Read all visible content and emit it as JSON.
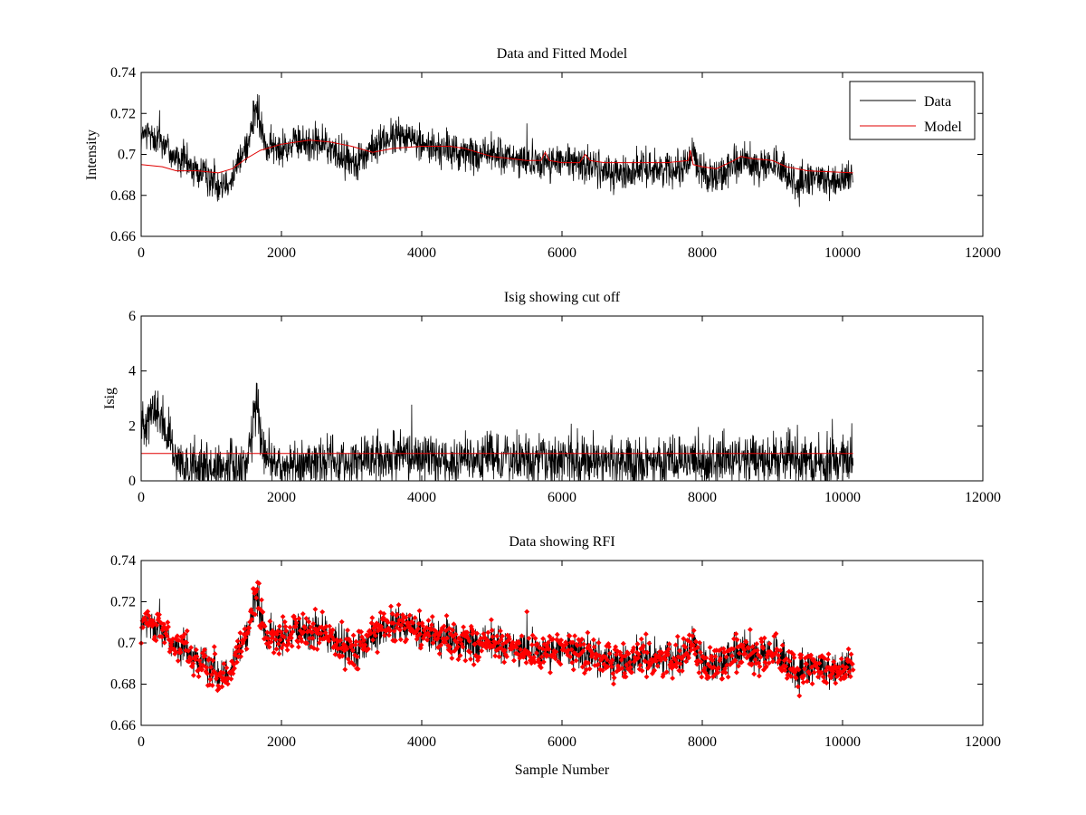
{
  "figure": {
    "background": "#ffffff"
  },
  "chart_data": [
    {
      "type": "line",
      "title": "Data and Fitted Model",
      "xlabel": "",
      "ylabel": "Intensity",
      "xlim": [
        0,
        12000
      ],
      "ylim": [
        0.66,
        0.74
      ],
      "xticks": [
        0,
        2000,
        4000,
        6000,
        8000,
        10000,
        12000
      ],
      "xtick_labels": [
        "0",
        "2000",
        "4000",
        "6000",
        "8000",
        "10000",
        "12000"
      ],
      "yticks": [
        0.66,
        0.68,
        0.7,
        0.72,
        0.74
      ],
      "ytick_labels": [
        "0.66",
        "0.68",
        "0.7",
        "0.72",
        "0.74"
      ],
      "grid": false,
      "legend": {
        "position": "top-right",
        "entries": [
          "Data",
          "Model"
        ]
      },
      "series": [
        {
          "name": "Data",
          "color": "#000000",
          "style": "noisy-line",
          "x": [
            0,
            100,
            200,
            300,
            400,
            500,
            700,
            900,
            1100,
            1300,
            1450,
            1550,
            1620,
            1660,
            1700,
            1800,
            2000,
            2200,
            2400,
            2600,
            2800,
            3000,
            3200,
            3400,
            3600,
            3800,
            3900,
            4000,
            4200,
            4400,
            4600,
            4800,
            5000,
            5200,
            5400,
            5600,
            5800,
            6000,
            6200,
            6400,
            6600,
            6800,
            7000,
            7200,
            7400,
            7600,
            7800,
            7850,
            8000,
            8200,
            8400,
            8600,
            8800,
            9000,
            9200,
            9400,
            9600,
            9800,
            10000,
            10150
          ],
          "y": [
            0.708,
            0.71,
            0.708,
            0.707,
            0.702,
            0.698,
            0.694,
            0.689,
            0.686,
            0.689,
            0.7,
            0.71,
            0.72,
            0.722,
            0.712,
            0.703,
            0.703,
            0.705,
            0.706,
            0.705,
            0.7,
            0.697,
            0.699,
            0.706,
            0.708,
            0.71,
            0.706,
            0.705,
            0.703,
            0.702,
            0.7,
            0.7,
            0.701,
            0.698,
            0.697,
            0.697,
            0.696,
            0.696,
            0.696,
            0.695,
            0.692,
            0.69,
            0.692,
            0.694,
            0.693,
            0.693,
            0.696,
            0.7,
            0.691,
            0.69,
            0.692,
            0.697,
            0.694,
            0.695,
            0.69,
            0.685,
            0.688,
            0.688,
            0.688,
            0.688
          ],
          "noise_amplitude": 0.008
        },
        {
          "name": "Model",
          "color": "#e00000",
          "style": "line",
          "x": [
            0,
            300,
            500,
            800,
            1100,
            1300,
            1500,
            1700,
            2000,
            2400,
            2700,
            3000,
            3300,
            3600,
            4000,
            4400,
            4600,
            5000,
            5500,
            5700,
            5760,
            5820,
            6000,
            6250,
            6330,
            6400,
            6600,
            7000,
            7500,
            7800,
            7830,
            7870,
            8000,
            8200,
            8450,
            8550,
            8700,
            9000,
            9200,
            9500,
            10150
          ],
          "y": [
            0.695,
            0.694,
            0.692,
            0.692,
            0.691,
            0.693,
            0.698,
            0.702,
            0.705,
            0.707,
            0.706,
            0.704,
            0.701,
            0.703,
            0.704,
            0.704,
            0.703,
            0.699,
            0.697,
            0.697,
            0.701,
            0.697,
            0.696,
            0.696,
            0.7,
            0.697,
            0.696,
            0.696,
            0.696,
            0.697,
            0.702,
            0.695,
            0.694,
            0.693,
            0.697,
            0.699,
            0.698,
            0.697,
            0.694,
            0.692,
            0.691
          ]
        }
      ]
    },
    {
      "type": "line",
      "title": "Isig showing cut off",
      "xlabel": "",
      "ylabel": "Isig",
      "xlim": [
        0,
        12000
      ],
      "ylim": [
        0,
        6
      ],
      "xticks": [
        0,
        2000,
        4000,
        6000,
        8000,
        10000,
        12000
      ],
      "xtick_labels": [
        "0",
        "2000",
        "4000",
        "6000",
        "8000",
        "10000",
        "12000"
      ],
      "yticks": [
        0,
        2,
        4,
        6
      ],
      "ytick_labels": [
        "0",
        "2",
        "4",
        "6"
      ],
      "grid": false,
      "series": [
        {
          "color": "#000000",
          "style": "noisy-line",
          "x": [
            0,
            100,
            200,
            300,
            400,
            500,
            700,
            1000,
            1300,
            1500,
            1600,
            1650,
            1700,
            1800,
            2000,
            2500,
            3000,
            3500,
            3900,
            4000,
            4500,
            4900,
            5000,
            5500,
            6000,
            6500,
            6700,
            7000,
            7500,
            8000,
            8500,
            9000,
            9300,
            9500,
            10000,
            10150
          ],
          "y": [
            2.0,
            2.4,
            2.5,
            2.2,
            1.4,
            0.6,
            0.45,
            0.45,
            0.5,
            0.6,
            2.2,
            3.2,
            1.5,
            0.6,
            0.6,
            0.7,
            0.7,
            0.8,
            0.9,
            0.8,
            0.8,
            0.8,
            0.9,
            0.7,
            0.7,
            0.7,
            0.9,
            0.7,
            0.7,
            0.7,
            0.8,
            0.8,
            1.0,
            0.7,
            0.7,
            0.8
          ],
          "noise_amplitude": 0.8
        },
        {
          "color": "#e00000",
          "style": "line",
          "x": [
            0,
            10150
          ],
          "y": [
            1.0,
            1.0
          ]
        }
      ]
    },
    {
      "type": "scatter",
      "title": "Data showing RFI",
      "xlabel": "Sample Number",
      "ylabel": "",
      "xlim": [
        0,
        12000
      ],
      "ylim": [
        0.66,
        0.74
      ],
      "xticks": [
        0,
        2000,
        4000,
        6000,
        8000,
        10000,
        12000
      ],
      "xtick_labels": [
        "0",
        "2000",
        "4000",
        "6000",
        "8000",
        "10000",
        "12000"
      ],
      "yticks": [
        0.66,
        0.68,
        0.7,
        0.72,
        0.74
      ],
      "ytick_labels": [
        "0.66",
        "0.68",
        "0.7",
        "0.72",
        "0.74"
      ],
      "grid": false,
      "series": [
        {
          "color": "#000000",
          "style": "noisy-line",
          "x": [
            0,
            100,
            200,
            300,
            400,
            500,
            700,
            900,
            1100,
            1300,
            1450,
            1550,
            1620,
            1660,
            1700,
            1800,
            2000,
            2200,
            2400,
            2600,
            2800,
            3000,
            3200,
            3400,
            3600,
            3800,
            3900,
            4000,
            4200,
            4400,
            4600,
            4800,
            5000,
            5200,
            5400,
            5600,
            5800,
            6000,
            6200,
            6400,
            6600,
            6800,
            7000,
            7200,
            7400,
            7600,
            7800,
            7850,
            8000,
            8200,
            8400,
            8600,
            8800,
            9000,
            9200,
            9400,
            9600,
            9800,
            10000,
            10150
          ],
          "y": [
            0.708,
            0.71,
            0.708,
            0.707,
            0.702,
            0.698,
            0.694,
            0.689,
            0.686,
            0.689,
            0.7,
            0.71,
            0.72,
            0.722,
            0.712,
            0.703,
            0.703,
            0.705,
            0.706,
            0.705,
            0.7,
            0.697,
            0.699,
            0.706,
            0.708,
            0.71,
            0.706,
            0.705,
            0.703,
            0.702,
            0.7,
            0.7,
            0.701,
            0.698,
            0.697,
            0.697,
            0.696,
            0.696,
            0.696,
            0.695,
            0.692,
            0.69,
            0.692,
            0.694,
            0.693,
            0.693,
            0.696,
            0.7,
            0.691,
            0.69,
            0.692,
            0.697,
            0.694,
            0.695,
            0.69,
            0.685,
            0.688,
            0.688,
            0.688,
            0.688
          ],
          "noise_amplitude": 0.008
        },
        {
          "color": "#ff0000",
          "style": "markers",
          "marker": "diamond",
          "x": [
            0,
            100,
            200,
            300,
            400,
            500,
            700,
            900,
            1100,
            1300,
            1450,
            1550,
            1620,
            1660,
            1700,
            1800,
            2000,
            2200,
            2400,
            2600,
            2800,
            3000,
            3200,
            3400,
            3600,
            3800,
            3900,
            4000,
            4200,
            4400,
            4600,
            4800,
            5000,
            5200,
            5400,
            5600,
            5800,
            6000,
            6200,
            6400,
            6600,
            6800,
            7000,
            7200,
            7400,
            7600,
            7800,
            7850,
            8000,
            8200,
            8400,
            8600,
            8800,
            9000,
            9200,
            9400,
            9600,
            9800,
            10000,
            10150
          ],
          "y": [
            0.708,
            0.71,
            0.708,
            0.707,
            0.702,
            0.698,
            0.694,
            0.689,
            0.686,
            0.689,
            0.7,
            0.71,
            0.72,
            0.722,
            0.712,
            0.703,
            0.703,
            0.705,
            0.706,
            0.705,
            0.7,
            0.697,
            0.699,
            0.706,
            0.708,
            0.71,
            0.706,
            0.705,
            0.703,
            0.702,
            0.7,
            0.7,
            0.701,
            0.698,
            0.697,
            0.697,
            0.696,
            0.696,
            0.696,
            0.695,
            0.692,
            0.69,
            0.692,
            0.694,
            0.693,
            0.693,
            0.696,
            0.7,
            0.691,
            0.69,
            0.692,
            0.697,
            0.694,
            0.695,
            0.69,
            0.685,
            0.688,
            0.688,
            0.688,
            0.688
          ],
          "noise_amplitude": 0.008
        }
      ]
    }
  ]
}
